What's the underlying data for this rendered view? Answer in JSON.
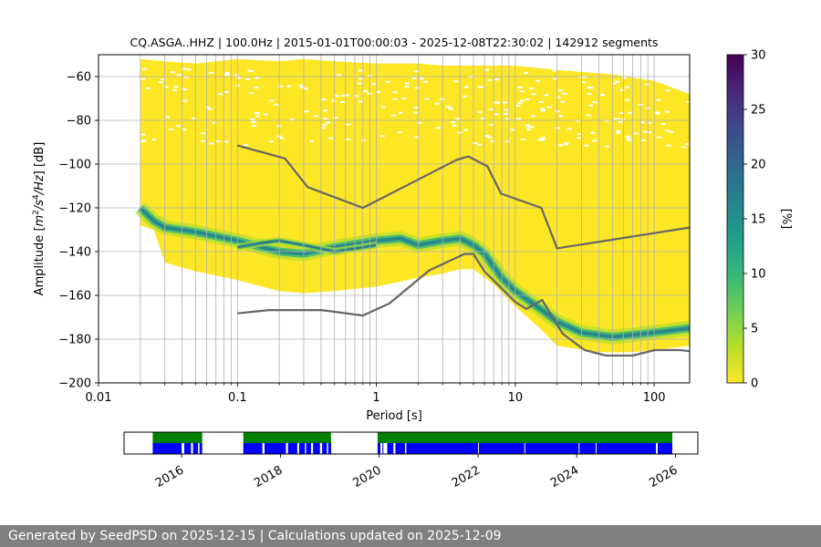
{
  "chart_data": [
    {
      "type": "heatmap",
      "title": "CQ.ASGA..HHZ | 100.0Hz | 2015-01-01T00:00:03 - 2025-12-08T22:30:02 | 142912 segments",
      "xlabel": "Period [s]",
      "ylabel": "Amplitude [m²/s⁴/Hz] [dB]",
      "xscale": "log",
      "xlim": [
        0.01,
        180
      ],
      "ylim": [
        -200,
        -50
      ],
      "xticks": [
        {
          "value": 0.01,
          "label": "0.01"
        },
        {
          "value": 0.1,
          "label": "0.1"
        },
        {
          "value": 1,
          "label": "1"
        },
        {
          "value": 10,
          "label": "10"
        },
        {
          "value": 100,
          "label": "100"
        }
      ],
      "yticks": [
        {
          "value": -60,
          "label": "−60"
        },
        {
          "value": -80,
          "label": "−80"
        },
        {
          "value": -100,
          "label": "−100"
        },
        {
          "value": -120,
          "label": "−120"
        },
        {
          "value": -140,
          "label": "−140"
        },
        {
          "value": -160,
          "label": "−160"
        },
        {
          "value": -180,
          "label": "−180"
        },
        {
          "value": -200,
          "label": "−200"
        }
      ],
      "grid": true,
      "colorbar": {
        "label": "[%]",
        "range": [
          0,
          30
        ],
        "ticks": [
          {
            "value": 0,
            "label": "0"
          },
          {
            "value": 5,
            "label": "5"
          },
          {
            "value": 10,
            "label": "10"
          },
          {
            "value": 15,
            "label": "15"
          },
          {
            "value": 20,
            "label": "20"
          },
          {
            "value": 25,
            "label": "25"
          },
          {
            "value": 30,
            "label": "30"
          }
        ],
        "colormap": [
          "#fde725",
          "#b5de2b",
          "#6ece58",
          "#35b779",
          "#1f9e89",
          "#26828e",
          "#31688e",
          "#3e4989",
          "#482878",
          "#440154"
        ]
      },
      "envelope_upper": [
        [
          0.02,
          -52
        ],
        [
          0.03,
          -53
        ],
        [
          0.05,
          -54
        ],
        [
          0.1,
          -52
        ],
        [
          0.2,
          -53
        ],
        [
          0.3,
          -52
        ],
        [
          0.5,
          -53
        ],
        [
          1,
          -54
        ],
        [
          2,
          -54
        ],
        [
          3,
          -55
        ],
        [
          5,
          -55
        ],
        [
          10,
          -55
        ],
        [
          20,
          -57
        ],
        [
          50,
          -59
        ],
        [
          100,
          -62
        ],
        [
          180,
          -68
        ]
      ],
      "envelope_lower": [
        [
          0.02,
          -128
        ],
        [
          0.025,
          -130
        ],
        [
          0.03,
          -145
        ],
        [
          0.05,
          -149
        ],
        [
          0.1,
          -153
        ],
        [
          0.2,
          -158
        ],
        [
          0.3,
          -159
        ],
        [
          0.5,
          -158
        ],
        [
          1,
          -156
        ],
        [
          2,
          -152
        ],
        [
          3,
          -150
        ],
        [
          4,
          -148
        ],
        [
          5,
          -148
        ],
        [
          7,
          -155
        ],
        [
          10,
          -165
        ],
        [
          15,
          -175
        ],
        [
          20,
          -183
        ],
        [
          40,
          -186
        ],
        [
          70,
          -186
        ],
        [
          100,
          -185
        ],
        [
          180,
          -183
        ]
      ],
      "density_ridge": [
        [
          0.02,
          -120
        ],
        [
          0.025,
          -126
        ],
        [
          0.03,
          -129
        ],
        [
          0.05,
          -131
        ],
        [
          0.07,
          -133
        ],
        [
          0.1,
          -135
        ],
        [
          0.15,
          -138
        ],
        [
          0.2,
          -140
        ],
        [
          0.3,
          -141
        ],
        [
          0.5,
          -138
        ],
        [
          0.8,
          -136
        ],
        [
          1,
          -135
        ],
        [
          1.5,
          -134
        ],
        [
          2,
          -137
        ],
        [
          3,
          -135
        ],
        [
          4,
          -134
        ],
        [
          5,
          -137
        ],
        [
          6,
          -141
        ],
        [
          7,
          -147
        ],
        [
          8,
          -152
        ],
        [
          10,
          -158
        ],
        [
          15,
          -166
        ],
        [
          20,
          -172
        ],
        [
          30,
          -177
        ],
        [
          50,
          -179
        ],
        [
          100,
          -177
        ],
        [
          180,
          -175
        ]
      ],
      "density_ridge_secondary": [
        [
          0.1,
          -138
        ],
        [
          0.15,
          -136
        ],
        [
          0.2,
          -135
        ],
        [
          0.3,
          -137
        ],
        [
          0.5,
          -140
        ],
        [
          0.8,
          -138
        ],
        [
          1,
          -137
        ]
      ],
      "series": [
        {
          "values": [
            [
              0.1,
              -91.5
            ],
            [
              0.22,
              -97.4
            ],
            [
              0.32,
              -110.5
            ],
            [
              0.8,
              -120
            ],
            [
              3.8,
              -98
            ],
            [
              4.6,
              -96.5
            ],
            [
              6.3,
              -101
            ],
            [
              7.9,
              -113.5
            ],
            [
              15.4,
              -120
            ],
            [
              20,
              -138.5
            ],
            [
              180,
              -129
            ]
          ]
        },
        {
          "values": [
            [
              0.1,
              -168.2
            ],
            [
              0.17,
              -166.7
            ],
            [
              0.4,
              -166.7
            ],
            [
              0.8,
              -169.2
            ],
            [
              1.24,
              -163.7
            ],
            [
              2.4,
              -148.6
            ],
            [
              4.3,
              -141.1
            ],
            [
              5,
              -141.1
            ],
            [
              6,
              -149
            ],
            [
              10,
              -163
            ],
            [
              12,
              -166.2
            ],
            [
              15.6,
              -162.1
            ],
            [
              21.9,
              -177.5
            ],
            [
              31.6,
              -185
            ],
            [
              45,
              -187.5
            ],
            [
              70,
              -187.5
            ],
            [
              101,
              -185
            ],
            [
              154,
              -185
            ],
            [
              180,
              -185.5
            ]
          ]
        }
      ]
    },
    {
      "type": "timeline",
      "xlim": [
        "2014-11-01",
        "2026-06-15"
      ],
      "xticks": [
        "2016",
        "2018",
        "2020",
        "2022",
        "2024",
        "2026"
      ],
      "coverage_color": "#0000ff",
      "gap_color": "#008000",
      "gaps": [
        [
          "2016-01-01",
          "2016-01-20"
        ],
        [
          "2016-03-10",
          "2016-03-25"
        ],
        [
          "2016-05-01",
          "2016-05-12"
        ],
        [
          "2017-08-20",
          "2017-09-05"
        ],
        [
          "2018-02-10",
          "2018-02-25"
        ],
        [
          "2018-05-05",
          "2018-05-18"
        ],
        [
          "2018-07-01",
          "2018-07-10"
        ],
        [
          "2018-08-15",
          "2018-08-30"
        ],
        [
          "2018-10-20",
          "2018-11-05"
        ],
        [
          "2018-12-10",
          "2018-12-20"
        ],
        [
          "2020-01-10",
          "2020-01-25"
        ],
        [
          "2020-04-15",
          "2020-04-30"
        ],
        [
          "2020-07-10",
          "2020-07-20"
        ],
        [
          "2025-08-10",
          "2025-08-22"
        ]
      ],
      "coverage": [
        [
          "2015-06-01",
          "2016-06-01"
        ],
        [
          "2017-04-01",
          "2019-01-10"
        ],
        [
          "2019-12-20",
          "2025-12-08"
        ]
      ],
      "coverage_gaps": [
        [
          "2017-08-25",
          "2017-09-05"
        ],
        [
          "2018-02-15",
          "2018-02-25"
        ],
        [
          "2018-05-10",
          "2018-05-18"
        ],
        [
          "2018-08-20",
          "2018-08-28"
        ],
        [
          "2018-10-25",
          "2018-11-02"
        ],
        [
          "2020-02-01",
          "2020-03-01"
        ],
        [
          "2020-04-18",
          "2020-04-28"
        ],
        [
          "2020-07-12",
          "2020-07-20"
        ],
        [
          "2022-01-01",
          "2022-01-06"
        ],
        [
          "2022-12-10",
          "2022-12-15"
        ],
        [
          "2024-01-15",
          "2024-01-20"
        ],
        [
          "2024-05-20",
          "2024-05-25"
        ],
        [
          "2025-08-10",
          "2025-08-22"
        ]
      ]
    }
  ],
  "footer": {
    "text": "Generated by SeedPSD on 2025-12-15 | Calculations updated on 2025-12-09"
  }
}
